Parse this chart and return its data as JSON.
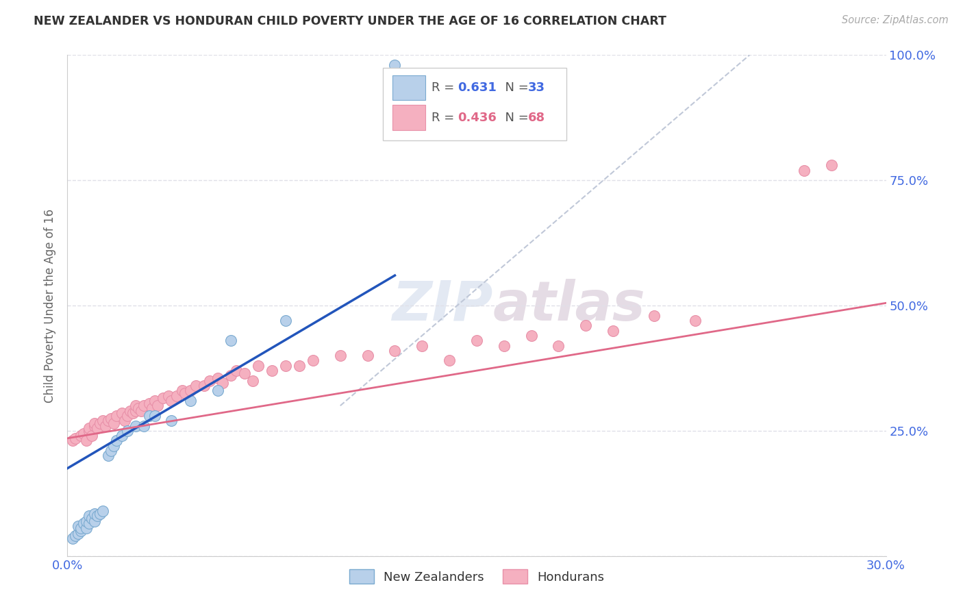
{
  "title": "NEW ZEALANDER VS HONDURAN CHILD POVERTY UNDER THE AGE OF 16 CORRELATION CHART",
  "source": "Source: ZipAtlas.com",
  "ylabel": "Child Poverty Under the Age of 16",
  "xlim": [
    0.0,
    0.3
  ],
  "ylim": [
    0.0,
    1.0
  ],
  "xticks": [
    0.0,
    0.05,
    0.1,
    0.15,
    0.2,
    0.25,
    0.3
  ],
  "xticklabels": [
    "0.0%",
    "",
    "",
    "",
    "",
    "",
    "30.0%"
  ],
  "yticks": [
    0.0,
    0.25,
    0.5,
    0.75,
    1.0
  ],
  "yticklabels": [
    "",
    "25.0%",
    "50.0%",
    "75.0%",
    "100.0%"
  ],
  "grid_color": "#e0e0e8",
  "background_color": "#ffffff",
  "axis_label_color": "#666666",
  "tick_color": "#4169e1",
  "nz_color": "#b8d0ea",
  "nz_edge_color": "#7aaad0",
  "hon_color": "#f5b0c0",
  "hon_edge_color": "#e890a8",
  "nz_line_color": "#2255bb",
  "hon_line_color": "#e06888",
  "ref_line_color": "#c0c8d8",
  "nz_scatter_x": [
    0.002,
    0.003,
    0.004,
    0.004,
    0.005,
    0.005,
    0.006,
    0.007,
    0.007,
    0.008,
    0.008,
    0.009,
    0.01,
    0.01,
    0.011,
    0.012,
    0.013,
    0.015,
    0.016,
    0.017,
    0.018,
    0.02,
    0.022,
    0.025,
    0.028,
    0.03,
    0.032,
    0.038,
    0.045,
    0.055,
    0.06,
    0.08,
    0.12
  ],
  "nz_scatter_y": [
    0.035,
    0.04,
    0.045,
    0.06,
    0.05,
    0.055,
    0.065,
    0.055,
    0.07,
    0.065,
    0.08,
    0.075,
    0.07,
    0.085,
    0.08,
    0.085,
    0.09,
    0.2,
    0.21,
    0.22,
    0.23,
    0.24,
    0.25,
    0.26,
    0.26,
    0.28,
    0.28,
    0.27,
    0.31,
    0.33,
    0.43,
    0.47,
    0.98
  ],
  "hon_scatter_x": [
    0.002,
    0.003,
    0.005,
    0.006,
    0.007,
    0.008,
    0.008,
    0.009,
    0.01,
    0.01,
    0.011,
    0.012,
    0.013,
    0.014,
    0.015,
    0.016,
    0.017,
    0.018,
    0.02,
    0.021,
    0.022,
    0.023,
    0.024,
    0.025,
    0.025,
    0.026,
    0.027,
    0.028,
    0.03,
    0.031,
    0.032,
    0.033,
    0.035,
    0.037,
    0.038,
    0.04,
    0.042,
    0.043,
    0.045,
    0.047,
    0.05,
    0.052,
    0.055,
    0.057,
    0.06,
    0.062,
    0.065,
    0.068,
    0.07,
    0.075,
    0.08,
    0.085,
    0.09,
    0.1,
    0.11,
    0.12,
    0.13,
    0.14,
    0.15,
    0.16,
    0.17,
    0.18,
    0.19,
    0.2,
    0.215,
    0.23,
    0.27,
    0.28
  ],
  "hon_scatter_y": [
    0.23,
    0.235,
    0.24,
    0.245,
    0.23,
    0.25,
    0.255,
    0.24,
    0.26,
    0.265,
    0.255,
    0.265,
    0.27,
    0.26,
    0.27,
    0.275,
    0.265,
    0.28,
    0.285,
    0.27,
    0.28,
    0.29,
    0.285,
    0.29,
    0.3,
    0.295,
    0.29,
    0.3,
    0.305,
    0.295,
    0.31,
    0.3,
    0.315,
    0.32,
    0.31,
    0.32,
    0.33,
    0.325,
    0.33,
    0.34,
    0.34,
    0.35,
    0.355,
    0.345,
    0.36,
    0.37,
    0.365,
    0.35,
    0.38,
    0.37,
    0.38,
    0.38,
    0.39,
    0.4,
    0.4,
    0.41,
    0.42,
    0.39,
    0.43,
    0.42,
    0.44,
    0.42,
    0.46,
    0.45,
    0.48,
    0.47,
    0.77,
    0.78
  ],
  "nz_line_x0": 0.0,
  "nz_line_y0": 0.175,
  "nz_line_x1": 0.12,
  "nz_line_y1": 0.56,
  "hon_line_x0": 0.0,
  "hon_line_y0": 0.235,
  "hon_line_x1": 0.3,
  "hon_line_y1": 0.505,
  "ref_line_x0": 0.1,
  "ref_line_y0": 0.3,
  "ref_line_x1": 0.25,
  "ref_line_y1": 1.0
}
